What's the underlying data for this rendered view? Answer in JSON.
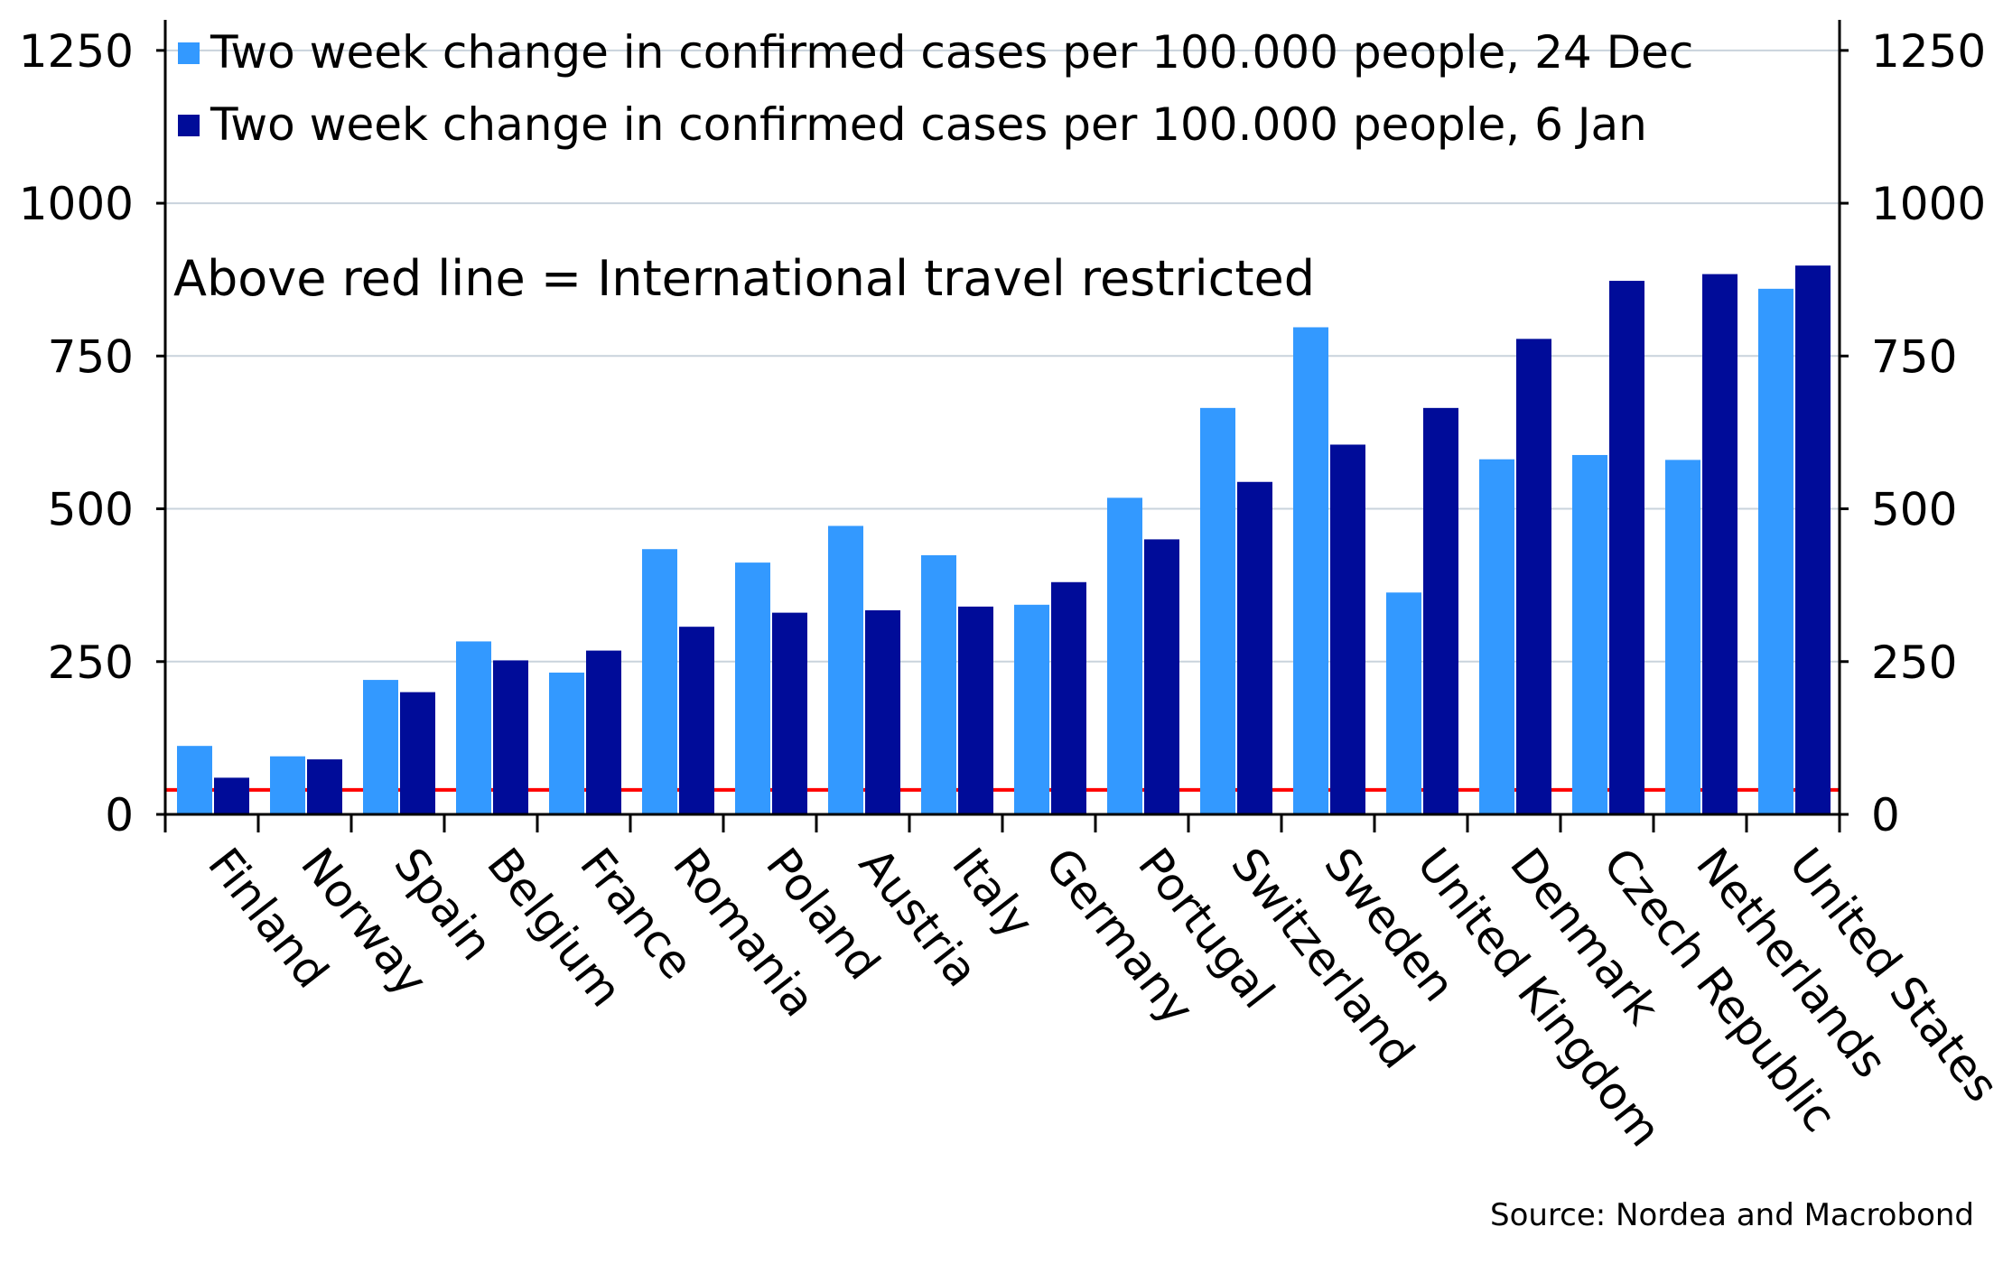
{
  "chart_data": {
    "type": "bar",
    "title": "",
    "xlabel": "",
    "ylabel": "",
    "ylim": [
      0,
      1300
    ],
    "yticks": [
      0,
      250,
      500,
      750,
      1000,
      1250
    ],
    "ytick_labels": [
      "0",
      "250",
      "500",
      "750",
      "1000",
      "1250"
    ],
    "dual_y_axis": true,
    "grid": "horizontal",
    "legend_position": "top-left",
    "categories": [
      "Finland",
      "Norway",
      "Spain",
      "Belgium",
      "France",
      "Romania",
      "Poland",
      "Austria",
      "Italy",
      "Germany",
      "Portugal",
      "Switzerland",
      "Sweden",
      "United Kingdom",
      "Denmark",
      "Czech Republic",
      "Netherlands",
      "United States"
    ],
    "series": [
      {
        "name": "Two week change in confirmed cases per 100.000 people, 24 Dec",
        "color": "#3399ff",
        "values": [
          112,
          95,
          220,
          283,
          232,
          434,
          412,
          472,
          424,
          343,
          518,
          665,
          797,
          363,
          581,
          588,
          580,
          860
        ]
      },
      {
        "name": "Two week change in confirmed cases per 100.000 people, 6 Jan",
        "color": "#000c99",
        "values": [
          60,
          90,
          200,
          252,
          268,
          307,
          330,
          334,
          340,
          380,
          450,
          544,
          605,
          665,
          778,
          873,
          884,
          898
        ]
      }
    ],
    "threshold_line": {
      "value": 40,
      "color": "#ff0000"
    },
    "annotations": [
      "Above red line = International travel restricted"
    ],
    "source": "Source: Nordea and Macrobond"
  }
}
